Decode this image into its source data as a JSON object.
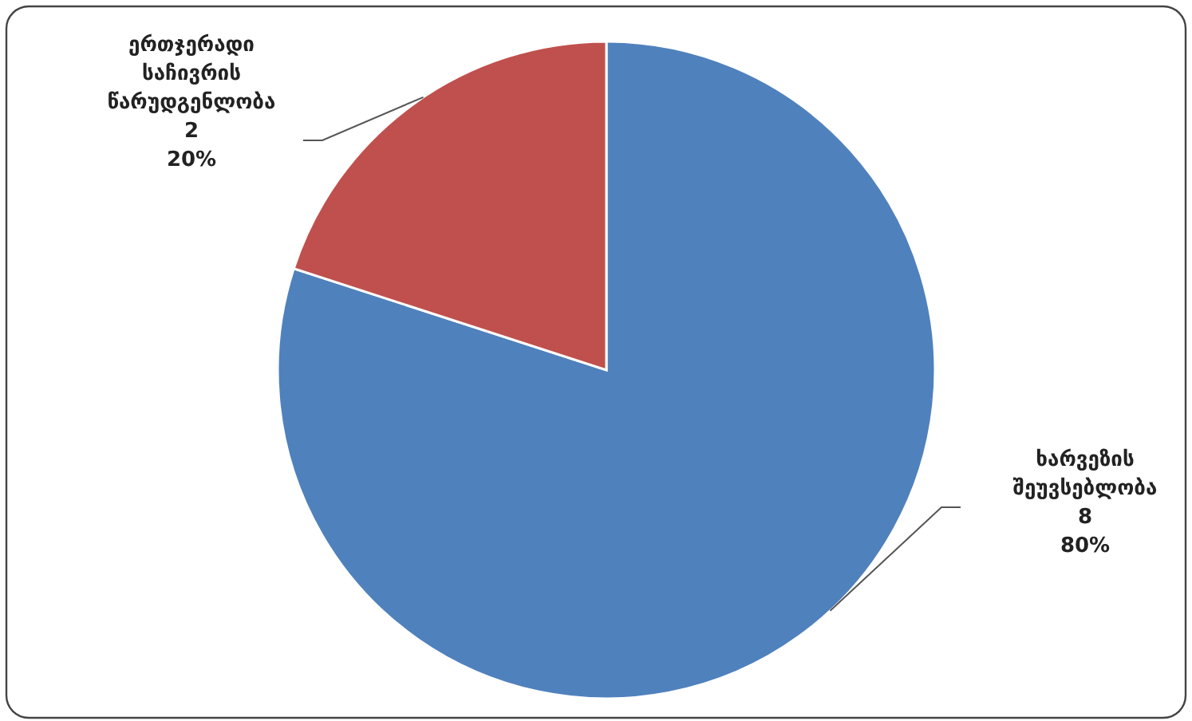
{
  "chart_data": {
    "type": "pie",
    "categories": [
      "ხარვეზის შეუვსებლობა",
      "ერთჯერადი საჩივრის წარუდგენლობა"
    ],
    "values": [
      8,
      2
    ],
    "colors": [
      "#4f81bd",
      "#c0504d"
    ],
    "value_labels": [
      "8\n80%",
      "2\n20%"
    ]
  }
}
